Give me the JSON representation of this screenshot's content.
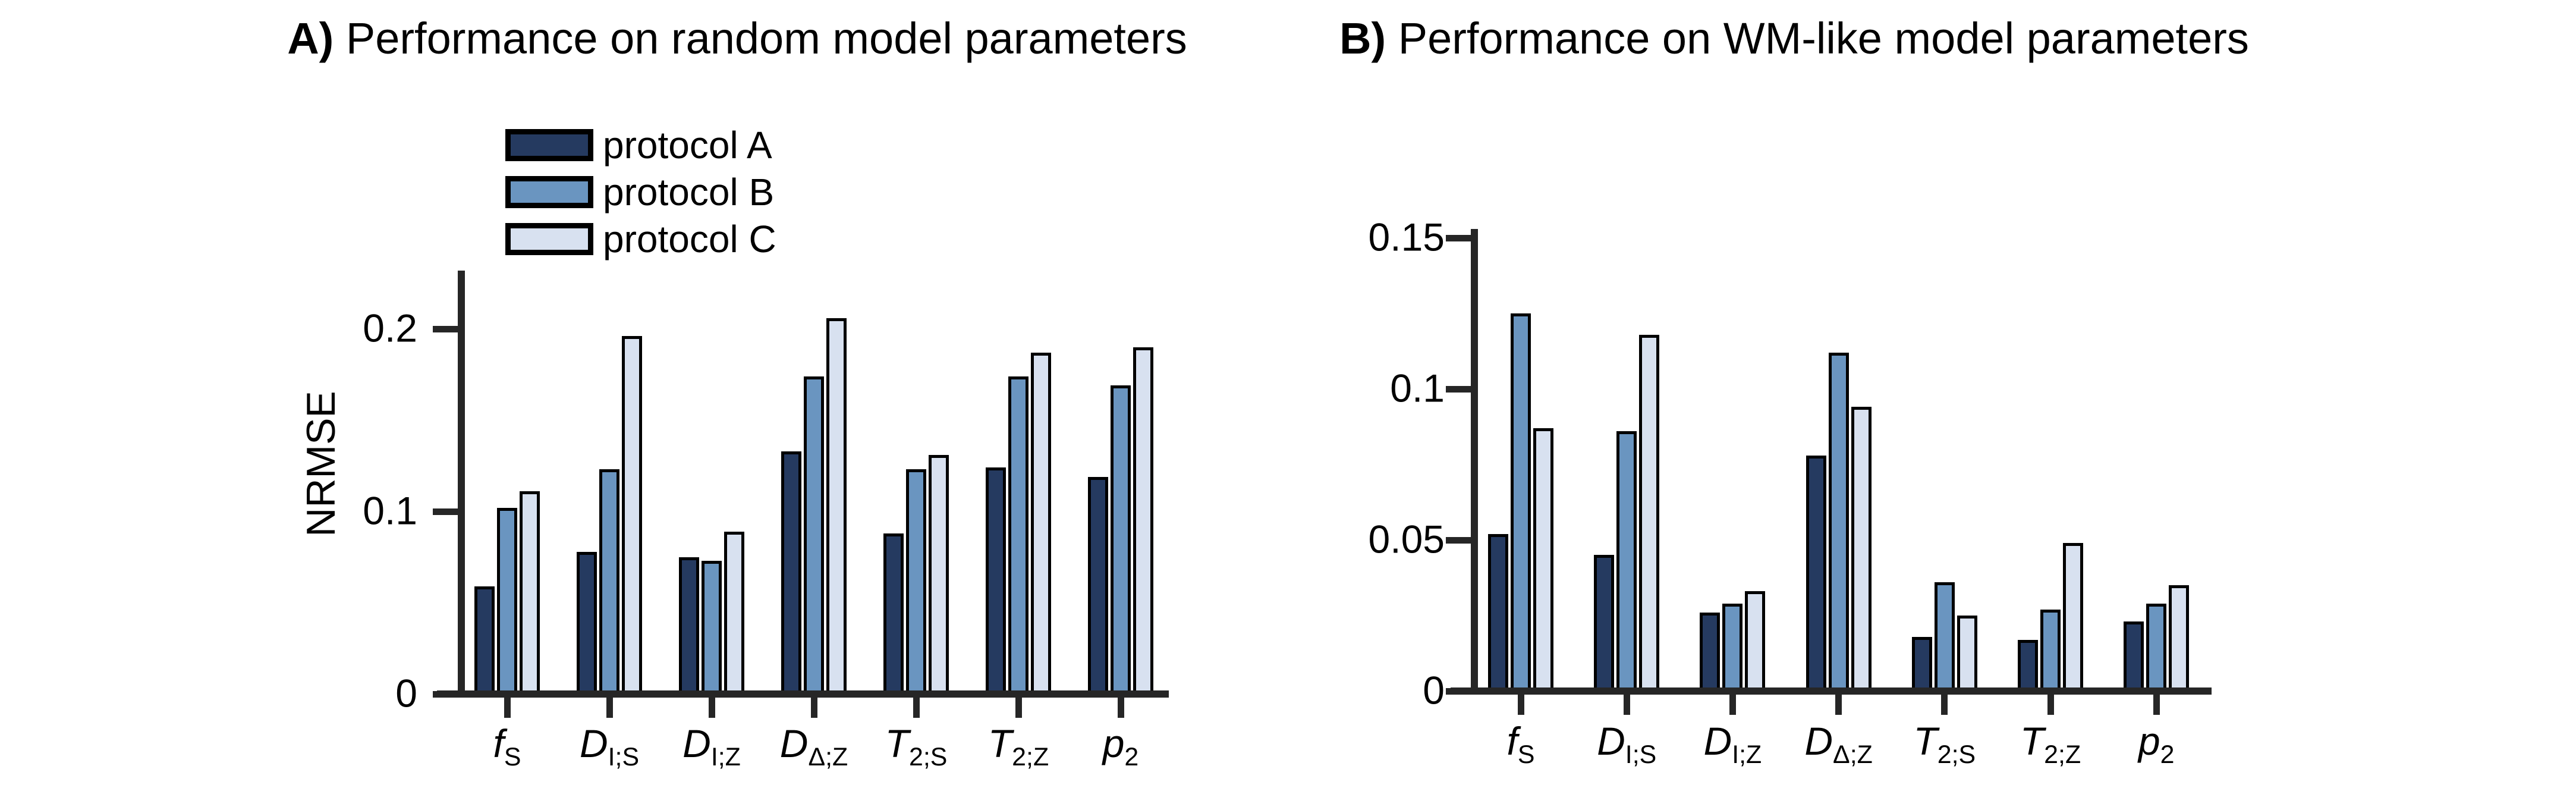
{
  "figure": {
    "background": "#ffffff",
    "axis_color": "#262626",
    "bar_border_color": "#000000"
  },
  "legend": {
    "position": "upper-left-inside-panel-a",
    "items": [
      {
        "label": "protocol A",
        "color": "#253a60"
      },
      {
        "label": "protocol B",
        "color": "#6a95c0"
      },
      {
        "label": "protocol C",
        "color": "#d8e1f0"
      }
    ]
  },
  "chart_data": [
    {
      "id": "panel-a",
      "type": "bar",
      "title_prefix": "A)",
      "title": "Performance on random model parameters",
      "xlabel": "",
      "ylabel": "NRMSE",
      "ylim": [
        0,
        0.232
      ],
      "grid": false,
      "yticks": [
        {
          "v": 0,
          "label": "0"
        },
        {
          "v": 0.1,
          "label": "0.1"
        },
        {
          "v": 0.2,
          "label": "0.2"
        }
      ],
      "categories": [
        "f_S",
        "D_I;S",
        "D_I;Z",
        "D_Δ;Z",
        "T_2;S",
        "T_2;Z",
        "p_2"
      ],
      "categories_rich": [
        {
          "base": "f",
          "sub": "S"
        },
        {
          "base": "D",
          "sub": "I;S"
        },
        {
          "base": "D",
          "sub": "I;Z"
        },
        {
          "base": "D",
          "sub": "Δ;Z"
        },
        {
          "base": "T",
          "sub": "2;S"
        },
        {
          "base": "T",
          "sub": "2;Z"
        },
        {
          "base": "p",
          "sub": "2"
        }
      ],
      "series": [
        {
          "name": "protocol A",
          "color": "#253a60",
          "values": [
            0.059,
            0.078,
            0.075,
            0.133,
            0.088,
            0.124,
            0.119
          ]
        },
        {
          "name": "protocol B",
          "color": "#6a95c0",
          "values": [
            0.102,
            0.123,
            0.073,
            0.174,
            0.123,
            0.174,
            0.169
          ]
        },
        {
          "name": "protocol C",
          "color": "#d8e1f0",
          "values": [
            0.111,
            0.196,
            0.089,
            0.206,
            0.131,
            0.187,
            0.19
          ]
        }
      ],
      "legend_visible": true
    },
    {
      "id": "panel-b",
      "type": "bar",
      "title_prefix": "B)",
      "title": "Performance on WM-like model parameters",
      "xlabel": "",
      "ylabel": "",
      "ylim": [
        0,
        0.153
      ],
      "grid": false,
      "yticks": [
        {
          "v": 0,
          "label": "0"
        },
        {
          "v": 0.05,
          "label": "0.05"
        },
        {
          "v": 0.1,
          "label": "0.1"
        },
        {
          "v": 0.15,
          "label": "0.15"
        }
      ],
      "categories": [
        "f_S",
        "D_I;S",
        "D_I;Z",
        "D_Δ;Z",
        "T_2;S",
        "T_2;Z",
        "p_2"
      ],
      "categories_rich": [
        {
          "base": "f",
          "sub": "S"
        },
        {
          "base": "D",
          "sub": "I;S"
        },
        {
          "base": "D",
          "sub": "I;Z"
        },
        {
          "base": "D",
          "sub": "Δ;Z"
        },
        {
          "base": "T",
          "sub": "2;S"
        },
        {
          "base": "T",
          "sub": "2;Z"
        },
        {
          "base": "p",
          "sub": "2"
        }
      ],
      "series": [
        {
          "name": "protocol A",
          "color": "#253a60",
          "values": [
            0.052,
            0.045,
            0.026,
            0.078,
            0.018,
            0.017,
            0.023
          ]
        },
        {
          "name": "protocol B",
          "color": "#6a95c0",
          "values": [
            0.125,
            0.086,
            0.029,
            0.112,
            0.036,
            0.027,
            0.029
          ]
        },
        {
          "name": "protocol C",
          "color": "#d8e1f0",
          "values": [
            0.087,
            0.118,
            0.033,
            0.094,
            0.025,
            0.049,
            0.035
          ]
        }
      ],
      "legend_visible": false
    }
  ]
}
